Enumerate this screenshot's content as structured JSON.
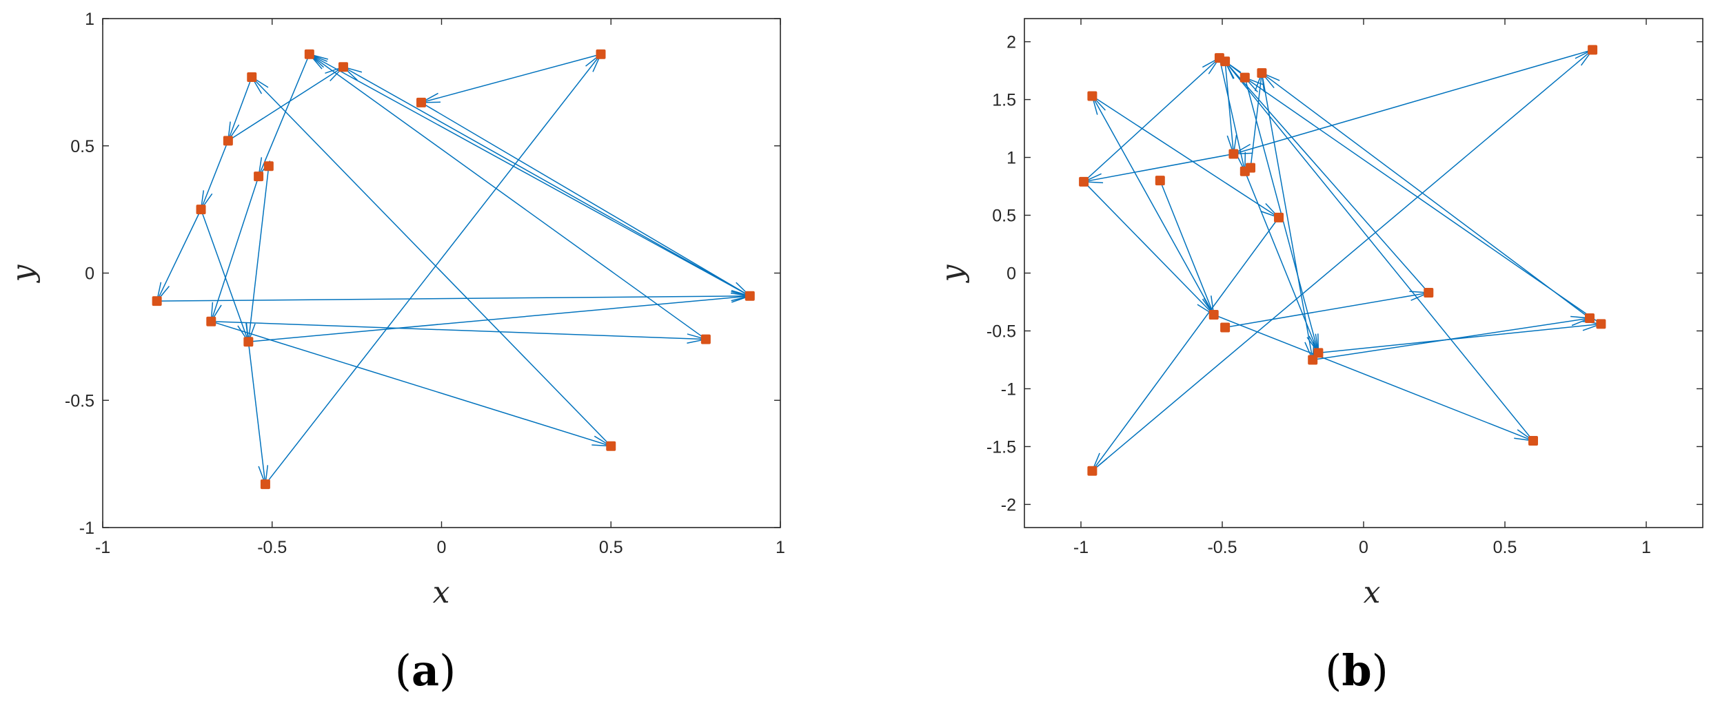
{
  "chart_data": [
    {
      "type": "scatter",
      "panel_label": "a",
      "xlabel": "x",
      "ylabel": "y",
      "xlim": [
        -1,
        1
      ],
      "ylim": [
        -1,
        1
      ],
      "xticks": [
        -1,
        -0.5,
        0,
        0.5,
        1
      ],
      "yticks": [
        -1,
        -0.5,
        0,
        0.5,
        1
      ],
      "xtick_labels": [
        "-1",
        "-0.5",
        "0",
        "0.5",
        "1"
      ],
      "ytick_labels": [
        "-1",
        "-0.5",
        "0",
        "0.5",
        "1"
      ],
      "grid": false,
      "point_color": "#D95319",
      "arrow_color": "#0072BD",
      "points": [
        {
          "x": -0.39,
          "y": 0.86
        },
        {
          "x": -0.29,
          "y": 0.81
        },
        {
          "x": 0.47,
          "y": 0.86
        },
        {
          "x": -0.06,
          "y": 0.67
        },
        {
          "x": -0.56,
          "y": 0.77
        },
        {
          "x": -0.63,
          "y": 0.52
        },
        {
          "x": -0.51,
          "y": 0.42
        },
        {
          "x": -0.54,
          "y": 0.38
        },
        {
          "x": -0.71,
          "y": 0.25
        },
        {
          "x": -0.84,
          "y": -0.11
        },
        {
          "x": -0.68,
          "y": -0.19
        },
        {
          "x": -0.57,
          "y": -0.27
        },
        {
          "x": 0.91,
          "y": -0.09
        },
        {
          "x": 0.78,
          "y": -0.26
        },
        {
          "x": 0.5,
          "y": -0.68
        },
        {
          "x": -0.52,
          "y": -0.83
        }
      ],
      "arrows": [
        [
          -0.84,
          -0.11,
          0.91,
          -0.09
        ],
        [
          0.91,
          -0.09,
          -0.39,
          0.86
        ],
        [
          0.91,
          -0.09,
          -0.29,
          0.81
        ],
        [
          -0.06,
          0.67,
          0.91,
          -0.09
        ],
        [
          -0.57,
          -0.27,
          0.91,
          -0.09
        ],
        [
          -0.68,
          -0.19,
          0.78,
          -0.26
        ],
        [
          -0.68,
          -0.19,
          0.5,
          -0.68
        ],
        [
          0.78,
          -0.26,
          -0.39,
          0.86
        ],
        [
          0.5,
          -0.68,
          -0.56,
          0.77
        ],
        [
          0.47,
          0.86,
          -0.06,
          0.67
        ],
        [
          -0.52,
          -0.83,
          0.47,
          0.86
        ],
        [
          -0.57,
          -0.27,
          -0.52,
          -0.83
        ],
        [
          -0.56,
          0.77,
          -0.63,
          0.52
        ],
        [
          -0.63,
          0.52,
          -0.29,
          0.81
        ],
        [
          -0.63,
          0.52,
          -0.71,
          0.25
        ],
        [
          -0.71,
          0.25,
          -0.84,
          -0.11
        ],
        [
          -0.71,
          0.25,
          -0.57,
          -0.27
        ],
        [
          -0.39,
          0.86,
          -0.54,
          0.38
        ],
        [
          -0.51,
          0.42,
          -0.57,
          -0.27
        ],
        [
          -0.54,
          0.38,
          -0.68,
          -0.19
        ]
      ]
    },
    {
      "type": "scatter",
      "panel_label": "b",
      "xlabel": "x",
      "ylabel": "y",
      "xlim": [
        -1.2,
        1.2
      ],
      "ylim": [
        -2.2,
        2.2
      ],
      "xticks": [
        -1,
        -0.5,
        0,
        0.5,
        1
      ],
      "yticks": [
        -2,
        -1.5,
        -1,
        -0.5,
        0,
        0.5,
        1,
        1.5,
        2
      ],
      "xtick_labels": [
        "-1",
        "-0.5",
        "0",
        "0.5",
        "1"
      ],
      "ytick_labels": [
        "-2",
        "-1.5",
        "-1",
        "-0.5",
        "0",
        "0.5",
        "1",
        "1.5",
        "2"
      ],
      "grid": false,
      "point_color": "#D95319",
      "arrow_color": "#0072BD",
      "points": [
        {
          "x": -0.51,
          "y": 1.86
        },
        {
          "x": -0.49,
          "y": 1.83
        },
        {
          "x": -0.42,
          "y": 1.69
        },
        {
          "x": -0.36,
          "y": 1.73
        },
        {
          "x": 0.81,
          "y": 1.93
        },
        {
          "x": -0.96,
          "y": 1.53
        },
        {
          "x": -0.46,
          "y": 1.03
        },
        {
          "x": -0.42,
          "y": 0.88
        },
        {
          "x": -0.4,
          "y": 0.91
        },
        {
          "x": -0.99,
          "y": 0.79
        },
        {
          "x": -0.72,
          "y": 0.8
        },
        {
          "x": -0.3,
          "y": 0.48
        },
        {
          "x": 0.23,
          "y": -0.17
        },
        {
          "x": -0.53,
          "y": -0.36
        },
        {
          "x": -0.49,
          "y": -0.47
        },
        {
          "x": -0.16,
          "y": -0.69
        },
        {
          "x": -0.18,
          "y": -0.75
        },
        {
          "x": 0.8,
          "y": -0.39
        },
        {
          "x": 0.84,
          "y": -0.44
        },
        {
          "x": 0.6,
          "y": -1.45
        },
        {
          "x": -0.96,
          "y": -1.71
        }
      ],
      "arrows": [
        [
          0.81,
          1.93,
          -0.46,
          1.03
        ],
        [
          -0.3,
          0.48,
          -0.96,
          -1.71
        ],
        [
          -0.96,
          -1.71,
          0.81,
          1.93
        ],
        [
          -0.99,
          0.79,
          -0.51,
          1.86
        ],
        [
          -0.99,
          0.79,
          -0.53,
          -0.36
        ],
        [
          -0.72,
          0.8,
          -0.53,
          -0.36
        ],
        [
          -0.53,
          -0.36,
          -0.96,
          1.53
        ],
        [
          -0.96,
          1.53,
          -0.3,
          0.48
        ],
        [
          -0.49,
          -0.47,
          0.23,
          -0.17
        ],
        [
          0.23,
          -0.17,
          -0.49,
          1.83
        ],
        [
          -0.51,
          1.86,
          -0.42,
          0.88
        ],
        [
          -0.49,
          1.83,
          -0.46,
          1.03
        ],
        [
          -0.42,
          1.69,
          -0.16,
          -0.69
        ],
        [
          -0.36,
          1.73,
          -0.18,
          -0.75
        ],
        [
          0.8,
          -0.39,
          -0.36,
          1.73
        ],
        [
          0.84,
          -0.44,
          -0.42,
          1.69
        ],
        [
          -0.4,
          0.91,
          -0.36,
          1.73
        ],
        [
          -0.16,
          -0.69,
          0.84,
          -0.44
        ],
        [
          -0.18,
          -0.75,
          0.8,
          -0.39
        ],
        [
          -0.46,
          1.03,
          -0.99,
          0.79
        ],
        [
          -0.53,
          -0.36,
          0.6,
          -1.45
        ],
        [
          0.6,
          -1.45,
          -0.49,
          1.83
        ],
        [
          -0.42,
          0.88,
          -0.16,
          -0.69
        ]
      ]
    }
  ]
}
